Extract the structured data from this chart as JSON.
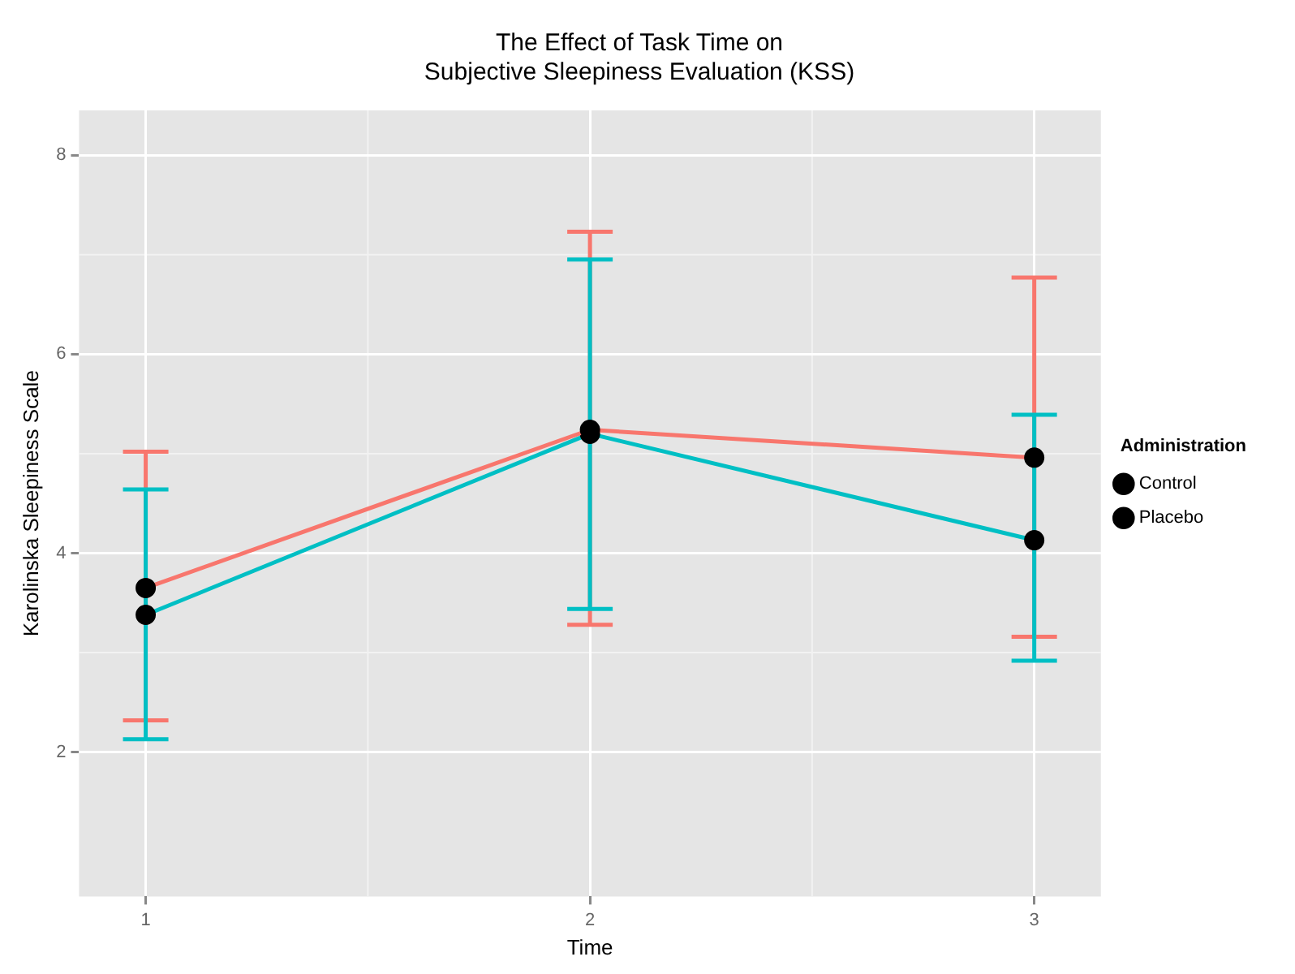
{
  "chart_data": {
    "type": "line",
    "title": "The Effect of Task Time on\nSubjective Sleepiness Evaluation (KSS)",
    "xlabel": "Time",
    "ylabel": "Karolinska Sleepiness Scale",
    "legend_title": "Administration",
    "x": [
      1,
      2,
      3
    ],
    "series": [
      {
        "name": "Control",
        "color": "#f8766d",
        "values": [
          3.65,
          5.24,
          4.96
        ],
        "errors": [
          [
            2.32,
            5.02
          ],
          [
            3.28,
            7.23
          ],
          [
            3.16,
            6.77
          ]
        ]
      },
      {
        "name": "Placebo",
        "color": "#00bfc4",
        "values": [
          3.38,
          5.2,
          4.13
        ],
        "errors": [
          [
            2.13,
            4.64
          ],
          [
            3.44,
            6.95
          ],
          [
            2.92,
            5.39
          ]
        ]
      }
    ],
    "xlim": [
      0.85,
      3.15
    ],
    "xticks": [
      1,
      2,
      3
    ],
    "ylim": [
      0.55,
      8.45
    ],
    "yticks": [
      2,
      4,
      6,
      8
    ],
    "grid": true,
    "legend": "right",
    "marker": "circle",
    "line_style": "solid"
  }
}
